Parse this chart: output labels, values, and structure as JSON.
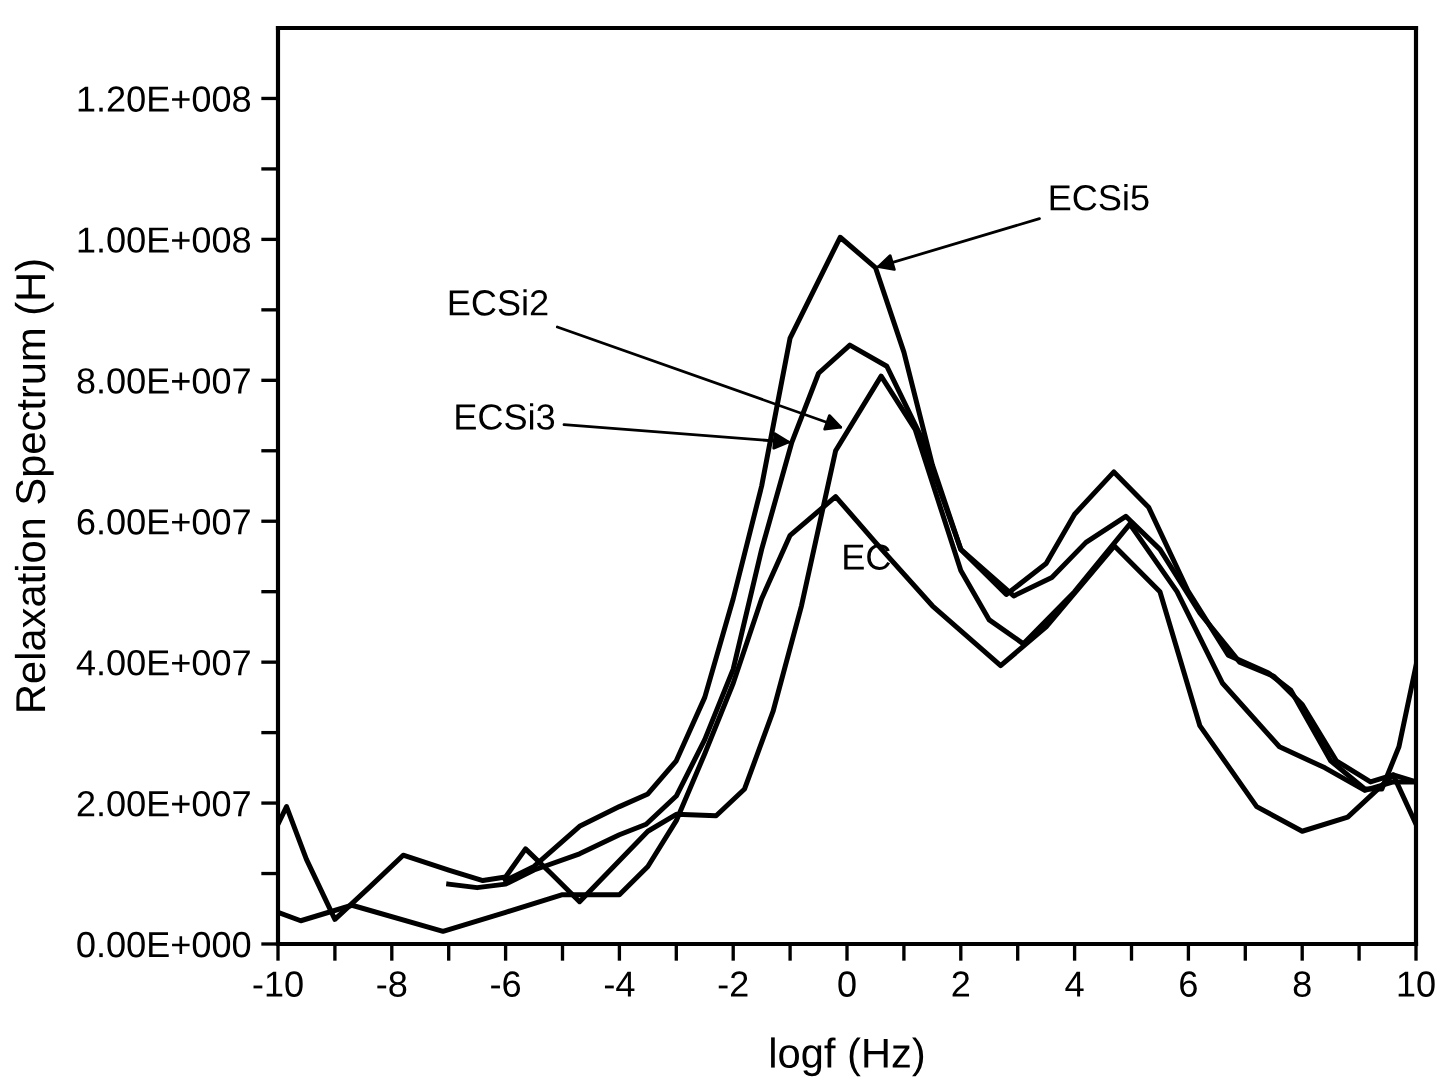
{
  "chart_data": {
    "type": "line",
    "xlabel": "logf (Hz)",
    "ylabel": "Relaxation Spectrum (H)",
    "xlim": [
      -10,
      10
    ],
    "ylim": [
      0,
      130000000.0
    ],
    "xticks": [
      -10,
      {
        "value": -9,
        "label": null
      },
      -8,
      {
        "value": -7,
        "label": null
      },
      -6,
      {
        "value": -5,
        "label": null
      },
      -4,
      {
        "value": -3,
        "label": null
      },
      -2,
      {
        "value": -1,
        "label": null
      },
      0,
      {
        "value": 1,
        "label": null
      },
      2,
      {
        "value": 3,
        "label": null
      },
      4,
      {
        "value": 5,
        "label": null
      },
      6,
      {
        "value": 7,
        "label": null
      },
      8,
      {
        "value": 9,
        "label": null
      },
      10
    ],
    "yticks": [
      {
        "value": 0,
        "label": "0.00E+000"
      },
      {
        "value": 10000000.0,
        "label": null
      },
      {
        "value": 20000000.0,
        "label": "2.00E+007"
      },
      {
        "value": 30000000.0,
        "label": null
      },
      {
        "value": 40000000.0,
        "label": "4.00E+007"
      },
      {
        "value": 50000000.0,
        "label": null
      },
      {
        "value": 60000000.0,
        "label": "6.00E+007"
      },
      {
        "value": 70000000.0,
        "label": null
      },
      {
        "value": 80000000.0,
        "label": "8.00E+007"
      },
      {
        "value": 90000000.0,
        "label": null
      },
      {
        "value": 100000000.0,
        "label": "1.00E+008"
      },
      {
        "value": 110000000.0,
        "label": null
      },
      {
        "value": 120000000.0,
        "label": "1.20E+008"
      }
    ],
    "grid": false,
    "marker": "none",
    "line_style": "solid",
    "series": [
      {
        "color": "#000000",
        "x": [
          -10,
          -9.6,
          -8.7,
          -7.1,
          -6,
          -5,
          -4,
          -3.5,
          -3,
          -2.5,
          -2,
          -1.5,
          -1,
          -0.2,
          0.5,
          1.5,
          2.7,
          3.5,
          4.7,
          5.5,
          6.2,
          7.2,
          8,
          8.8,
          9.6,
          10
        ],
        "values": [
          4500000.0,
          3300000.0,
          5500000.0,
          1800000.0,
          4500000.0,
          7000000.0,
          7000000.0,
          11000000.0,
          17500000.0,
          27000000.0,
          37000000.0,
          49000000.0,
          58000000.0,
          63500000.0,
          57000000.0,
          48000000.0,
          39500000.0,
          45000000.0,
          56500000.0,
          50000000.0,
          31000000.0,
          19500000.0,
          16000000.0,
          18000000.0,
          24000000.0,
          17000000.0
        ]
      },
      {
        "color": "#000000",
        "x": [
          -10,
          -9.85,
          -9.5,
          -9,
          -8.4,
          -7.8,
          -7,
          -6.4,
          -6,
          -5.65,
          -5.2,
          -4.7,
          -4.1,
          -3.5,
          -3,
          -2.3,
          -1.8,
          -1.3,
          -0.8,
          -0.2,
          0.6,
          1.2,
          2,
          2.5,
          3.1,
          4,
          4.97,
          5.8,
          6.6,
          7.6,
          8.4,
          9.1,
          9.6,
          10
        ],
        "values": [
          17000000.0,
          19500000.0,
          12000000.0,
          3500000.0,
          8000000.0,
          12600000.0,
          10500000.0,
          9000000.0,
          9500000.0,
          13500000.0,
          10000000.0,
          6000000.0,
          11000000.0,
          16000000.0,
          18400000.0,
          18200000.0,
          22000000.0,
          33000000.0,
          48000000.0,
          70000000.0,
          80600000.0,
          73000000.0,
          53000000.0,
          46000000.0,
          42600000.0,
          50000000.0,
          59600000.0,
          50000000.0,
          37000000.0,
          28000000.0,
          25000000.0,
          21800000.0,
          23000000.0,
          23000000.0
        ]
      },
      {
        "color": "#000000",
        "x": [
          -6,
          -5.5,
          -4.7,
          -4,
          -3.5,
          -3,
          -2.5,
          -2,
          -1.5,
          -1,
          -0.12,
          0.5,
          1,
          1.5,
          2,
          2.8,
          3.5,
          4,
          4.69,
          5.3,
          6,
          6.7,
          7.4,
          7.8,
          8.5,
          9.1,
          9.4,
          9.7,
          10
        ],
        "values": [
          9000000.0,
          11000000.0,
          16700000.0,
          19500000.0,
          21300000.0,
          26000000.0,
          35000000.0,
          49000000.0,
          65000000.0,
          86000000.0,
          100300000.0,
          96000000.0,
          84000000.0,
          68000000.0,
          56000000.0,
          49600000.0,
          54000000.0,
          61000000.0,
          67000000.0,
          62000000.0,
          50000000.0,
          41000000.0,
          38500000.0,
          36000000.0,
          26000000.0,
          22000000.0,
          22000000.0,
          28000000.0,
          39500000.0
        ]
      },
      {
        "color": "#000000",
        "x": [
          -7,
          -6.5,
          -6,
          -5.5,
          -4.7,
          -4,
          -3.53,
          -3,
          -2.5,
          -2,
          -1.5,
          -0.97,
          -0.5,
          0.05,
          0.7,
          1.3,
          2,
          2.93,
          3.6,
          4.2,
          4.9,
          5.5,
          6.2,
          6.9,
          7.5,
          8,
          8.6,
          9.2,
          9.6,
          10
        ],
        "values": [
          8500000.0,
          8000000.0,
          8500000.0,
          10500000.0,
          12800000.0,
          15500000.0,
          17000000.0,
          21000000.0,
          29000000.0,
          39000000.0,
          56000000.0,
          71200000.0,
          81000000.0,
          85000000.0,
          82000000.0,
          72000000.0,
          56000000.0,
          49400000.0,
          52000000.0,
          57000000.0,
          60700000.0,
          56000000.0,
          47000000.0,
          40000000.0,
          38000000.0,
          34000000.0,
          26000000.0,
          23000000.0,
          24000000.0,
          23000000.0
        ]
      }
    ],
    "annotations": [
      {
        "text": "ECSi5",
        "x": 0.5,
        "y": 96000000.0
      },
      {
        "text": "ECSi2",
        "x": -0.06,
        "y": 73200000.0
      },
      {
        "text": "ECSi3",
        "x": -0.97,
        "y": 71200000.0
      },
      "EC"
    ]
  }
}
